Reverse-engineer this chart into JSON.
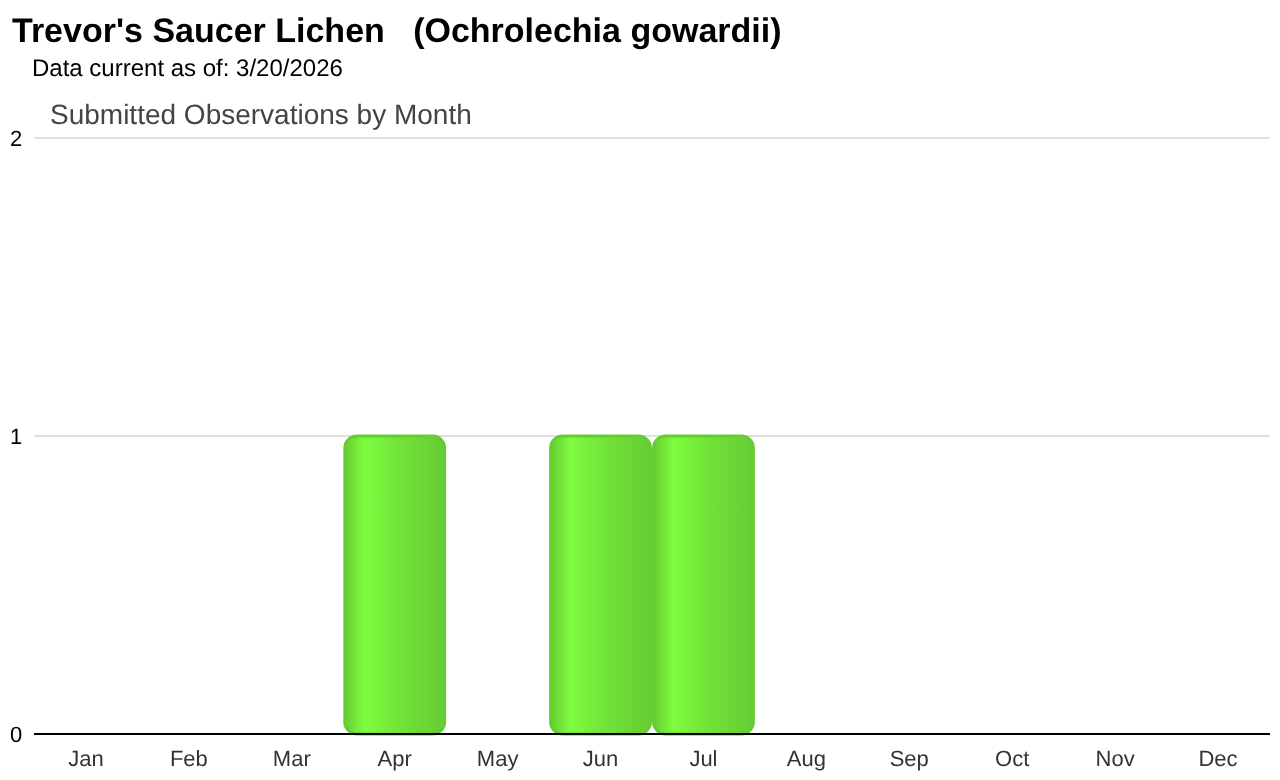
{
  "chart_data": {
    "type": "bar",
    "title": "Trevor's Saucer Lichen   (Ochrolechia gowardii)",
    "subtitle": "Data current as of: 3/20/2026",
    "annotations": [
      "Submitted Observations by Month"
    ],
    "categories": [
      "Jan",
      "Feb",
      "Mar",
      "Apr",
      "May",
      "Jun",
      "Jul",
      "Aug",
      "Sep",
      "Oct",
      "Nov",
      "Dec"
    ],
    "values": [
      0,
      0,
      0,
      1,
      0,
      1,
      1,
      0,
      0,
      0,
      0,
      0
    ],
    "color": "#66cc33",
    "ylim": [
      0,
      2
    ],
    "yticks": [
      0,
      1,
      2
    ],
    "grid": "y"
  }
}
